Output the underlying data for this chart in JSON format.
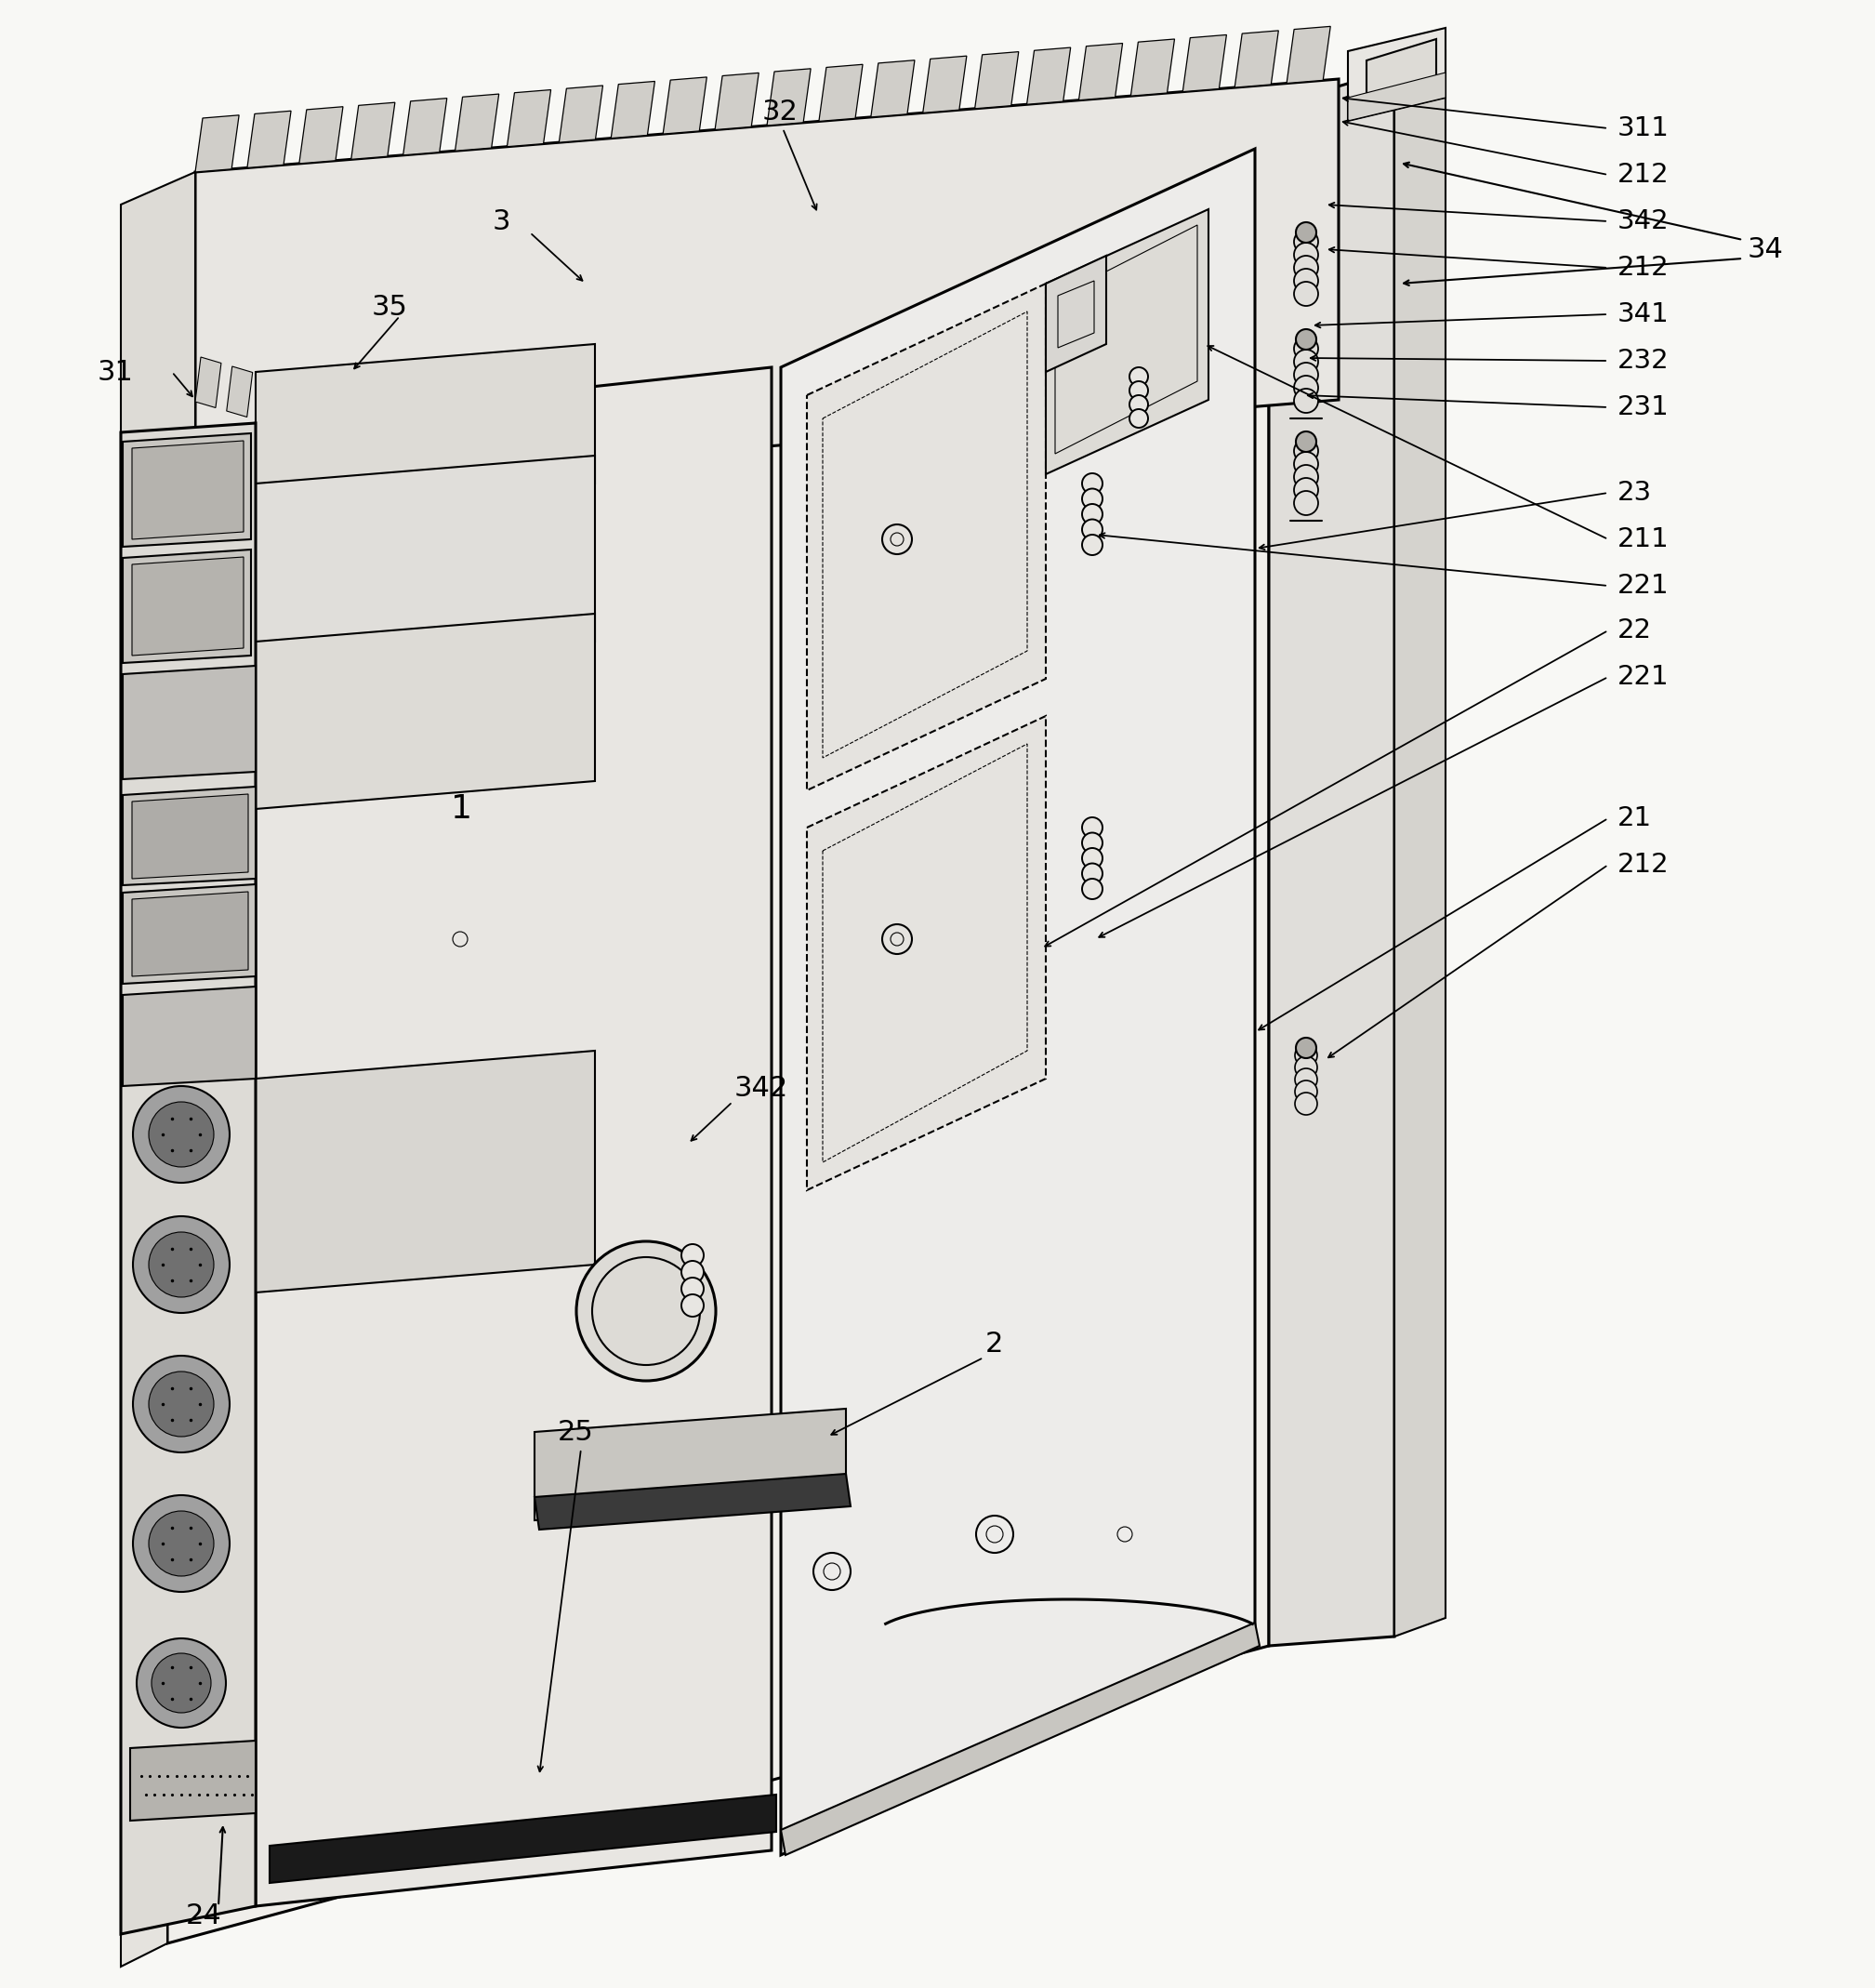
{
  "background_color": "#f8f8f5",
  "line_color": "#000000",
  "fig_width": 19.97,
  "fig_height": 21.18,
  "annotations_right": [
    [
      "311",
      1730,
      128
    ],
    [
      "212",
      1730,
      178
    ],
    [
      "342",
      1730,
      228
    ],
    [
      "212",
      1730,
      278
    ],
    [
      "341",
      1730,
      328
    ],
    [
      "232",
      1730,
      378
    ],
    [
      "231",
      1730,
      428
    ],
    [
      "23",
      1730,
      520
    ],
    [
      "211",
      1730,
      570
    ],
    [
      "221",
      1730,
      620
    ],
    [
      "22",
      1730,
      668
    ],
    [
      "221",
      1730,
      718
    ],
    [
      "21",
      1730,
      870
    ],
    [
      "212",
      1730,
      920
    ]
  ]
}
